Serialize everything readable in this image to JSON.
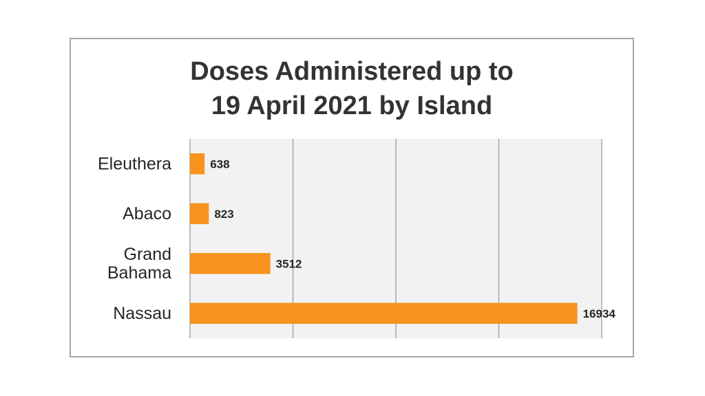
{
  "chart_data": {
    "type": "bar",
    "orientation": "horizontal",
    "title": "Doses Administered up to\n19 April 2021 by Island",
    "categories": [
      "Eleuthera",
      "Abaco",
      "Grand Bahama",
      "Nassau"
    ],
    "category_lines": [
      [
        "Eleuthera"
      ],
      [
        "Abaco"
      ],
      [
        "Grand",
        "Bahama"
      ],
      [
        "Nassau"
      ]
    ],
    "values": [
      638,
      823,
      3512,
      16934
    ],
    "data_labels": [
      "638",
      "823",
      "3512",
      "16934"
    ],
    "xlim": [
      0,
      18000
    ],
    "x_gridlines": [
      4500,
      9000,
      13500,
      18000
    ],
    "bar_color": "#f7931e",
    "plot_background": "#f2f2f2",
    "grid": true,
    "legend": "none"
  }
}
